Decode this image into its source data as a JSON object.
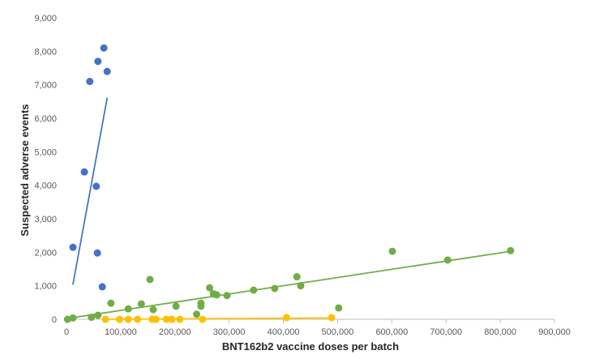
{
  "chart_data": {
    "type": "scatter",
    "title": "",
    "xlabel": "BNT162b2 vaccine doses per batch",
    "ylabel": "Suspected adverse events",
    "xlim": [
      0,
      900000
    ],
    "ylim": [
      0,
      9000
    ],
    "x_ticks": [
      0,
      100000,
      200000,
      300000,
      400000,
      500000,
      600000,
      700000,
      800000,
      900000
    ],
    "x_tick_labels": [
      "0",
      "100,000",
      "200,000",
      "300,000",
      "400,000",
      "500,000",
      "600,000",
      "700,000",
      "800,000",
      "900,000"
    ],
    "y_ticks": [
      0,
      1000,
      2000,
      3000,
      4000,
      5000,
      6000,
      7000,
      8000,
      9000
    ],
    "y_tick_labels": [
      "0",
      "1,000",
      "2,000",
      "3,000",
      "4,000",
      "5,000",
      "6,000",
      "7,000",
      "8,000",
      "9,000"
    ],
    "grid": false,
    "legend": "none",
    "series": [
      {
        "color": "#4472C4",
        "points": [
          [
            12000,
            2150
          ],
          [
            33000,
            4400
          ],
          [
            43000,
            7100
          ],
          [
            55000,
            3970
          ],
          [
            57000,
            1980
          ],
          [
            58000,
            7700
          ],
          [
            66000,
            970
          ],
          [
            69000,
            8100
          ],
          [
            75000,
            7400
          ]
        ],
        "trendline": [
          [
            12000,
            1050
          ],
          [
            75000,
            6600
          ]
        ]
      },
      {
        "color": "#70AD47",
        "points": [
          [
            2000,
            0
          ],
          [
            12000,
            40
          ],
          [
            46000,
            60
          ],
          [
            58000,
            120
          ],
          [
            82000,
            480
          ],
          [
            114000,
            310
          ],
          [
            138000,
            460
          ],
          [
            154000,
            1190
          ],
          [
            160000,
            290
          ],
          [
            202000,
            390
          ],
          [
            240000,
            150
          ],
          [
            248000,
            480
          ],
          [
            248000,
            390
          ],
          [
            264000,
            940
          ],
          [
            271000,
            760
          ],
          [
            277000,
            730
          ],
          [
            296000,
            710
          ],
          [
            345000,
            870
          ],
          [
            384000,
            920
          ],
          [
            425000,
            1270
          ],
          [
            432000,
            1000
          ],
          [
            502000,
            340
          ],
          [
            601000,
            2030
          ],
          [
            703000,
            1770
          ],
          [
            819000,
            2050
          ]
        ],
        "trendline": [
          [
            0,
            20
          ],
          [
            819000,
            2030
          ]
        ]
      },
      {
        "color": "#FFC000",
        "points": [
          [
            72000,
            0
          ],
          [
            98000,
            0
          ],
          [
            114000,
            0
          ],
          [
            131000,
            0
          ],
          [
            158000,
            0
          ],
          [
            165000,
            0
          ],
          [
            184000,
            0
          ],
          [
            194000,
            0
          ],
          [
            209000,
            0
          ],
          [
            251000,
            0
          ],
          [
            406000,
            50
          ],
          [
            489000,
            50
          ]
        ],
        "trendline": [
          [
            72000,
            0
          ],
          [
            489000,
            40
          ]
        ]
      }
    ]
  }
}
